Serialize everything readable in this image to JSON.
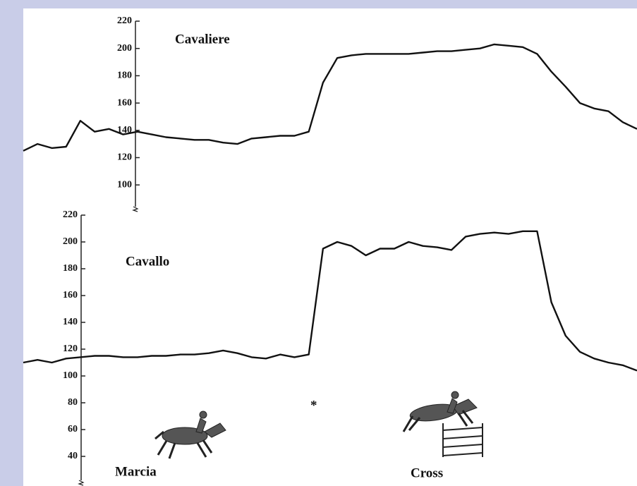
{
  "chart_data": [
    {
      "type": "line",
      "title": "Cavaliere",
      "color": "#111111",
      "values": [
        125,
        130,
        127,
        128,
        147,
        139,
        141,
        137,
        139,
        137,
        135,
        134,
        133,
        133,
        131,
        130,
        134,
        135,
        136,
        136,
        139,
        175,
        193,
        195,
        196,
        196,
        196,
        196,
        197,
        198,
        198,
        199,
        200,
        203,
        202,
        201,
        196,
        183,
        172,
        160,
        156,
        154,
        146,
        141
      ],
      "ylim": [
        82,
        220
      ],
      "yticks": [
        100,
        120,
        140,
        160,
        180,
        200,
        220
      ]
    },
    {
      "type": "line",
      "title": "Cavallo",
      "color": "#111111",
      "values": [
        110,
        112,
        110,
        113,
        114,
        115,
        115,
        114,
        114,
        115,
        115,
        116,
        116,
        117,
        119,
        117,
        114,
        113,
        116,
        114,
        116,
        195,
        200,
        197,
        190,
        195,
        195,
        200,
        197,
        196,
        194,
        204,
        206,
        207,
        206,
        208,
        208,
        155,
        130,
        118,
        113,
        110,
        108,
        104
      ],
      "ylim": [
        20,
        220
      ],
      "yticks": [
        40,
        60,
        80,
        100,
        120,
        140,
        160,
        180,
        200,
        220
      ],
      "annotations": [
        "*",
        "Marcia",
        "Cross"
      ]
    }
  ]
}
